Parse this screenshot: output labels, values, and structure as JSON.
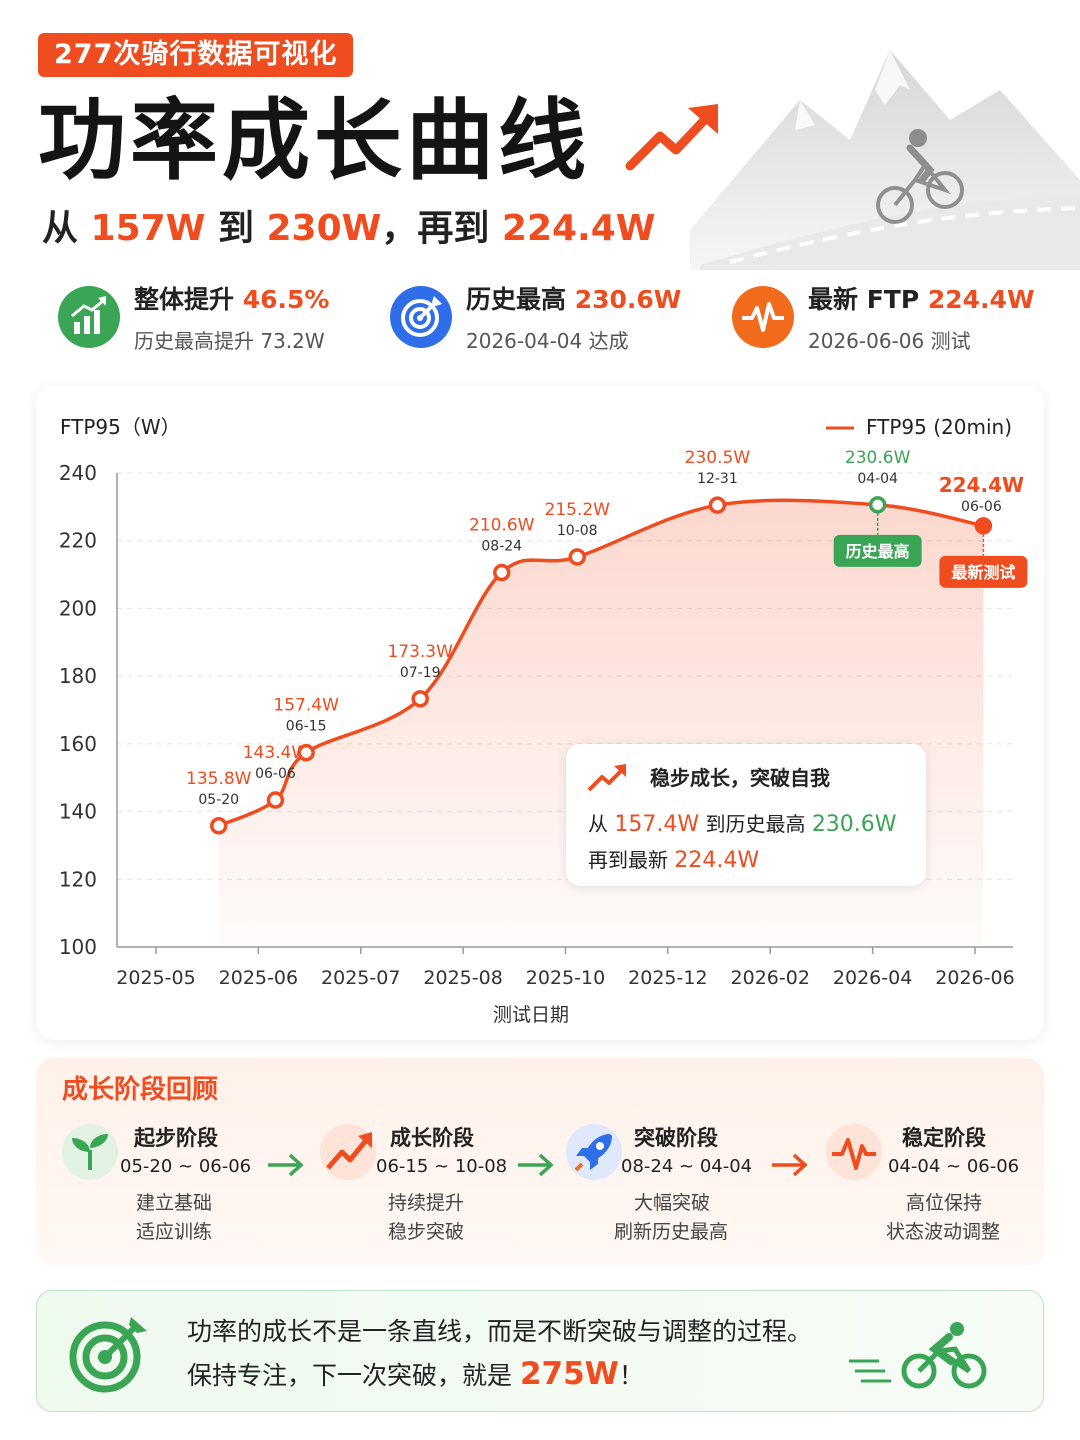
{
  "header": {
    "tag": "277次骑行数据可视化",
    "title": "功率成长曲线",
    "subtitle": {
      "p1": "从 ",
      "v1": "157W",
      "p2": " 到 ",
      "v2": "230W",
      "p3": "，再到 ",
      "v3": "224.4W"
    }
  },
  "stats": [
    {
      "label": "整体提升 ",
      "value": "46.5%",
      "sub": "历史最高提升 73.2W",
      "color": "#3aa655",
      "icon": "bar-chart-up-icon"
    },
    {
      "label": "历史最高 ",
      "value": "230.6W",
      "sub": "2026-04-04 达成",
      "color": "#2f6ee8",
      "icon": "target-icon"
    },
    {
      "label": "最新 FTP ",
      "value": "224.4W",
      "sub": "2026-06-06 测试",
      "color": "#f26b1d",
      "icon": "pulse-icon"
    }
  ],
  "chart_data": {
    "type": "line",
    "ylabel": "FTP95（W）",
    "xlabel": "测试日期",
    "ylim": [
      100,
      240
    ],
    "yticks": [
      100,
      120,
      140,
      160,
      180,
      200,
      220,
      240
    ],
    "x_tick_labels": [
      "2025-05",
      "2025-06",
      "2025-07",
      "2025-08",
      "2025-10",
      "2025-12",
      "2026-02",
      "2026-04",
      "2026-06"
    ],
    "grid": true,
    "legend_position": "top-right",
    "series": [
      {
        "name": "FTP95 (20min)",
        "color": "#ef4c1f",
        "points": [
          {
            "date": "2025-05-20",
            "y": 135.8,
            "value_label": "135.8W",
            "date_label": "05-20"
          },
          {
            "date": "2025-06-06",
            "y": 143.4,
            "value_label": "143.4W",
            "date_label": "06-06"
          },
          {
            "date": "2025-06-15",
            "y": 157.4,
            "value_label": "157.4W",
            "date_label": "06-15"
          },
          {
            "date": "2025-07-19",
            "y": 173.3,
            "value_label": "173.3W",
            "date_label": "07-19"
          },
          {
            "date": "2025-08-24",
            "y": 210.6,
            "value_label": "210.6W",
            "date_label": "08-24"
          },
          {
            "date": "2025-10-08",
            "y": 215.2,
            "value_label": "215.2W",
            "date_label": "10-08"
          },
          {
            "date": "2025-12-31",
            "y": 230.5,
            "value_label": "230.5W",
            "date_label": "12-31"
          },
          {
            "date": "2026-04-04",
            "y": 230.6,
            "value_label": "230.6W",
            "date_label": "04-04",
            "badge": "历史最高",
            "highlight": "#3aa655"
          },
          {
            "date": "2026-06-06",
            "y": 224.4,
            "value_label": "224.4W",
            "date_label": "06-06",
            "badge": "最新测试",
            "highlight": "#ef4c1f"
          }
        ]
      }
    ],
    "annotation": {
      "title": "稳步成长，突破自我",
      "line1_a": "从 ",
      "line1_v1": "157.4W",
      "line1_b": " 到历史最高 ",
      "line1_v2": "230.6W",
      "line2_a": "再到最新 ",
      "line2_v": "224.4W"
    }
  },
  "phases": {
    "title": "成长阶段回顾",
    "items": [
      {
        "name": "起步阶段",
        "range": "05-20 ~ 06-06",
        "desc1": "建立基础",
        "desc2": "适应训练",
        "icon": "sprout-icon",
        "color": "#3aa655"
      },
      {
        "name": "成长阶段",
        "range": "06-15 ~ 10-08",
        "desc1": "持续提升",
        "desc2": "稳步突破",
        "icon": "trend-up-icon",
        "color": "#ef4c1f"
      },
      {
        "name": "突破阶段",
        "range": "08-24 ~ 04-04",
        "desc1": "大幅突破",
        "desc2": "刷新历史最高",
        "icon": "rocket-icon",
        "color": "#2f6ee8"
      },
      {
        "name": "稳定阶段",
        "range": "04-04 ~ 06-06",
        "desc1": "高位保持",
        "desc2": "状态波动调整",
        "icon": "pulse-icon",
        "color": "#ef4c1f"
      }
    ]
  },
  "footer": {
    "line1": "功率的成长不是一条直线，而是不断突破与调整的过程。",
    "line2_a": "保持专注，下一次突破，就是 ",
    "line2_v": "275W",
    "line2_b": "！"
  }
}
